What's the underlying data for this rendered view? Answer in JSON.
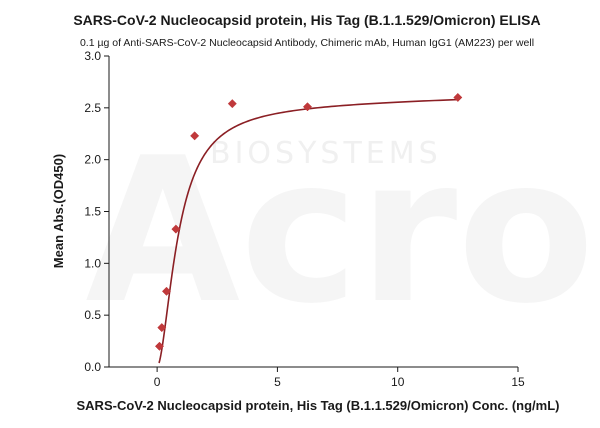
{
  "chart_data": {
    "type": "scatter",
    "title": "SARS-CoV-2 Nucleocapsid protein, His Tag (B.1.1.529/Omicron) ELISA",
    "subtitle": "0.1 µg of Anti-SARS-CoV-2 Nucleocapsid Antibody, Chimeric mAb, Human IgG1 (AM223) per well",
    "xlabel": "SARS-CoV-2 Nucleocapsid protein, His Tag (B.1.1.529/Omicron) Conc. (ng/mL)",
    "ylabel": "Mean Abs.(OD450)",
    "xlim": [
      -2,
      15
    ],
    "ylim": [
      0,
      3
    ],
    "x_ticks": [
      0,
      5,
      10,
      15
    ],
    "x_tick_labels": [
      "0",
      "5",
      "10",
      "15"
    ],
    "y_ticks": [
      0.0,
      0.5,
      1.0,
      1.5,
      2.0,
      2.5,
      3.0
    ],
    "y_tick_labels": [
      "0.0",
      "0.5",
      "1.0",
      "1.5",
      "2.0",
      "2.5",
      "3.0"
    ],
    "grid": false,
    "legend": "none",
    "series": [
      {
        "x": [
          0.098,
          0.195,
          0.39,
          0.78,
          1.56,
          3.125,
          6.25,
          12.5
        ],
        "y": [
          0.2,
          0.38,
          0.73,
          1.33,
          2.23,
          2.54,
          2.51,
          2.6
        ],
        "marker": "diamond",
        "color": "#c0393b",
        "fit_line_color": "#8b1f24"
      }
    ],
    "watermark": {
      "text": "BIOSYSTEMS",
      "logo": "Acro"
    }
  }
}
